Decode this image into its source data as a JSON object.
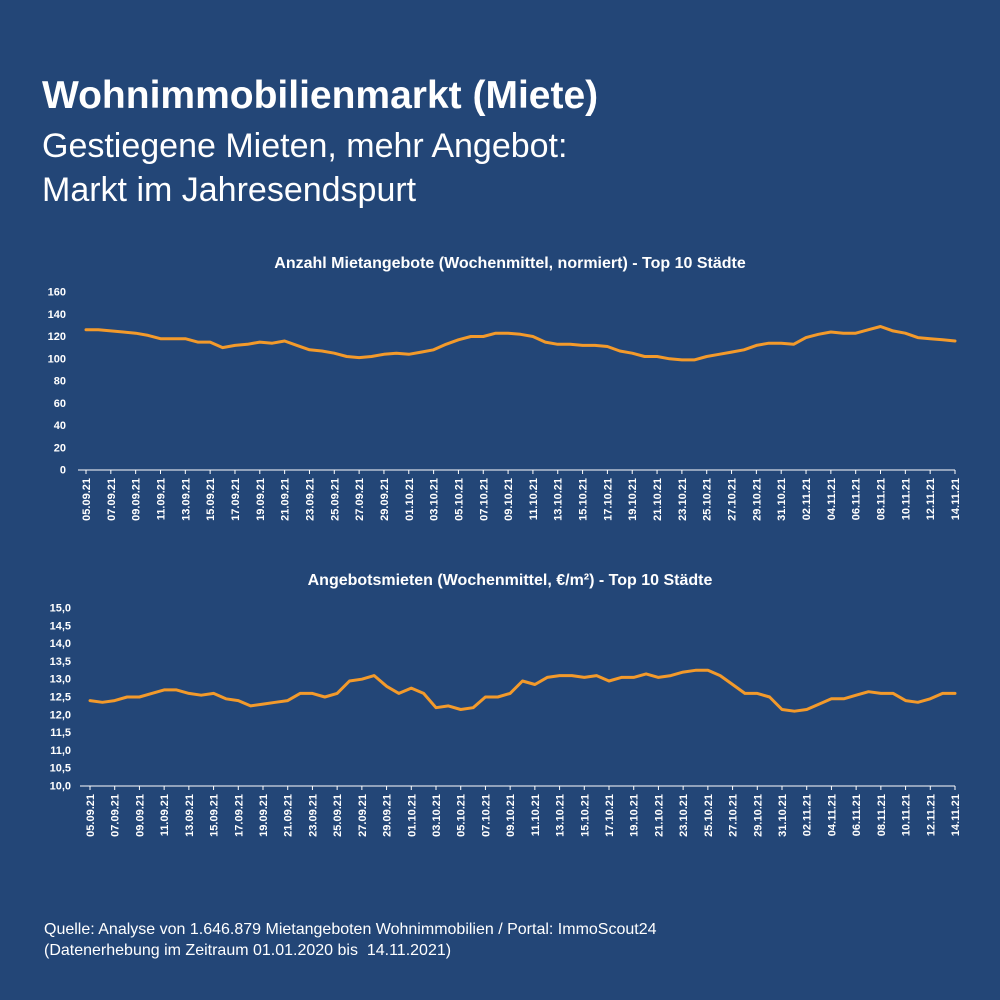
{
  "header": {
    "title": "Wohnimmobilienmarkt (Miete)",
    "subtitle_line1": "Gestiegene Mieten, mehr Angebot:",
    "subtitle_line2": "Markt im Jahresendspurt"
  },
  "source": {
    "line1": "Quelle: Analyse von 1.646.879 Mietangeboten Wohnimmobilien / Portal: ImmoScout24",
    "line2": "(Datenerhebung im Zeitraum 01.01.2020 bis  14.11.2021)"
  },
  "colors": {
    "background": "#234677",
    "line": "#F39A2B",
    "text": "#FFFFFF"
  },
  "chart_data": [
    {
      "type": "line",
      "title": "Anzahl Mietangebote (Wochenmittel, normiert) - Top 10 Städte",
      "ylim": [
        0,
        160
      ],
      "yticks": [
        "0",
        "20",
        "40",
        "60",
        "80",
        "100",
        "120",
        "140",
        "160"
      ],
      "xtick_labels": [
        "05.09.21",
        "07.09.21",
        "09.09.21",
        "11.09.21",
        "13.09.21",
        "15.09.21",
        "17.09.21",
        "19.09.21",
        "21.09.21",
        "23.09.21",
        "25.09.21",
        "27.09.21",
        "29.09.21",
        "01.10.21",
        "03.10.21",
        "05.10.21",
        "07.10.21",
        "09.10.21",
        "11.10.21",
        "13.10.21",
        "15.10.21",
        "17.10.21",
        "19.10.21",
        "21.10.21",
        "23.10.21",
        "25.10.21",
        "27.10.21",
        "29.10.21",
        "31.10.21",
        "02.11.21",
        "04.11.21",
        "06.11.21",
        "08.11.21",
        "10.11.21",
        "12.11.21",
        "14.11.21"
      ],
      "series": [
        {
          "values": [
            126,
            126,
            125,
            124,
            123,
            121,
            118,
            118,
            118,
            115,
            115,
            110,
            112,
            113,
            115,
            114,
            116,
            112,
            108,
            107,
            105,
            102,
            101,
            102,
            104,
            105,
            104,
            106,
            108,
            113,
            117,
            120,
            120,
            123,
            123,
            122,
            120,
            115,
            113,
            113,
            112,
            112,
            111,
            107,
            105,
            102,
            102,
            100,
            99,
            99,
            102,
            104,
            106,
            108,
            112,
            114,
            114,
            113,
            119,
            122,
            124,
            123,
            123,
            126,
            129,
            125,
            123,
            119,
            118,
            117,
            116
          ]
        }
      ]
    },
    {
      "type": "line",
      "title": "Angebotsmieten (Wochenmittel, €/m²) - Top 10 Städte",
      "ylim": [
        10.0,
        15.0
      ],
      "yticks": [
        "10,0",
        "10,5",
        "11,0",
        "11,5",
        "12,0",
        "12,5",
        "13,0",
        "13,5",
        "14,0",
        "14,5",
        "15,0"
      ],
      "xtick_labels": [
        "05.09.21",
        "07.09.21",
        "09.09.21",
        "11.09.21",
        "13.09.21",
        "15.09.21",
        "17.09.21",
        "19.09.21",
        "21.09.21",
        "23.09.21",
        "25.09.21",
        "27.09.21",
        "29.09.21",
        "01.10.21",
        "03.10.21",
        "05.10.21",
        "07.10.21",
        "09.10.21",
        "11.10.21",
        "13.10.21",
        "15.10.21",
        "17.10.21",
        "19.10.21",
        "21.10.21",
        "23.10.21",
        "25.10.21",
        "27.10.21",
        "29.10.21",
        "31.10.21",
        "02.11.21",
        "04.11.21",
        "06.11.21",
        "08.11.21",
        "10.11.21",
        "12.11.21",
        "14.11.21"
      ],
      "series": [
        {
          "values": [
            12.4,
            12.35,
            12.4,
            12.5,
            12.5,
            12.6,
            12.7,
            12.7,
            12.6,
            12.55,
            12.6,
            12.45,
            12.4,
            12.25,
            12.3,
            12.35,
            12.4,
            12.6,
            12.6,
            12.5,
            12.6,
            12.95,
            13.0,
            13.1,
            12.8,
            12.6,
            12.75,
            12.6,
            12.2,
            12.25,
            12.15,
            12.2,
            12.5,
            12.5,
            12.6,
            12.95,
            12.85,
            13.05,
            13.1,
            13.1,
            13.05,
            13.1,
            12.95,
            13.05,
            13.05,
            13.15,
            13.05,
            13.1,
            13.2,
            13.25,
            13.25,
            13.1,
            12.85,
            12.6,
            12.6,
            12.5,
            12.15,
            12.1,
            12.15,
            12.3,
            12.45,
            12.45,
            12.55,
            12.65,
            12.6,
            12.6,
            12.4,
            12.35,
            12.45,
            12.6,
            12.6
          ]
        }
      ]
    }
  ]
}
